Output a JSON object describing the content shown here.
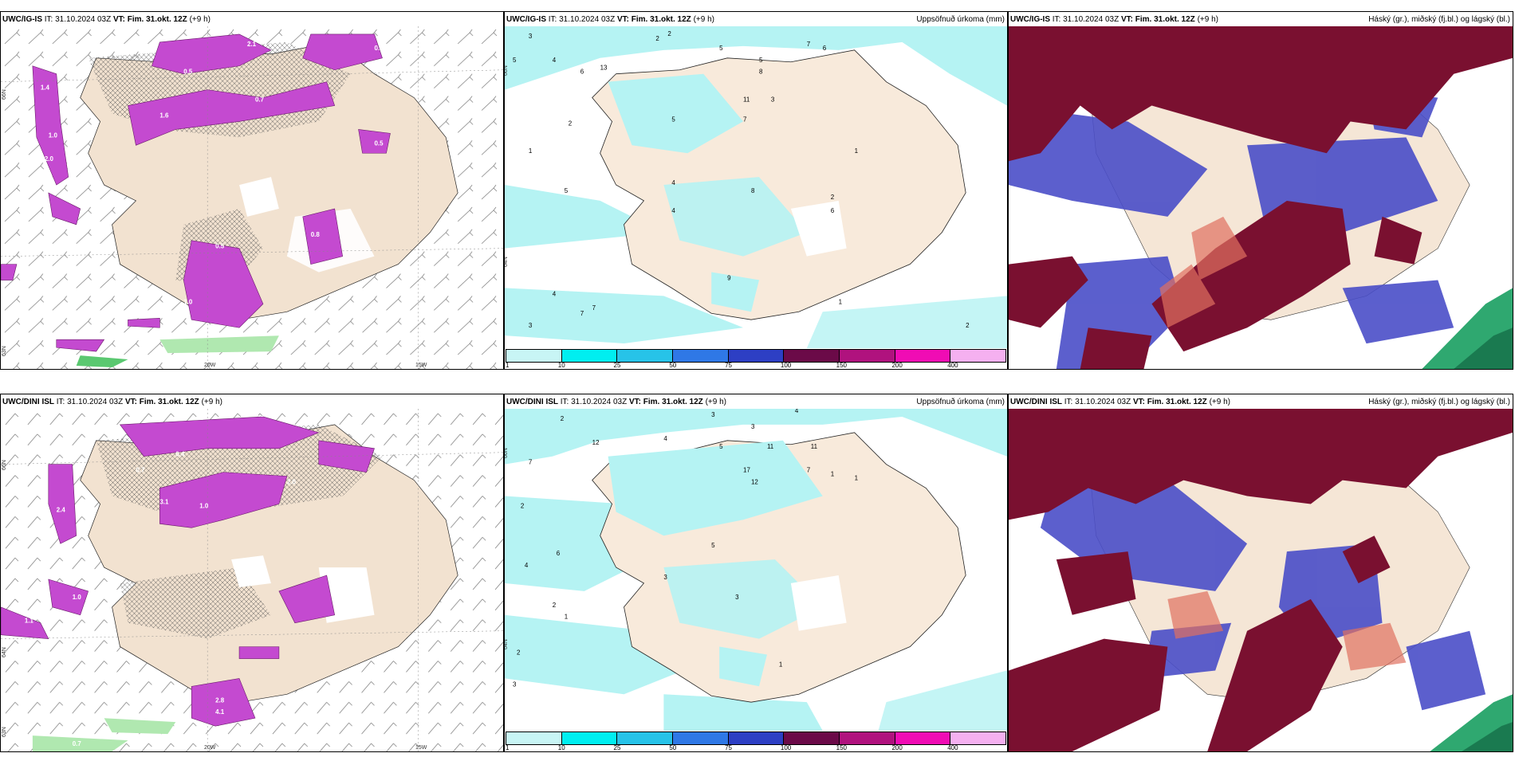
{
  "panels": {
    "tl": {
      "model": "UWC/IG-IS",
      "it_label": "IT:",
      "it": "31.10.2024 03Z",
      "vt_label": "VT: Fim. 31.okt. 12Z",
      "lead": "(+9 h)",
      "right": ""
    },
    "tm": {
      "model": "UWC/IG-IS",
      "it_label": "IT:",
      "it": "31.10.2024 03Z",
      "vt_label": "VT: Fim. 31.okt. 12Z",
      "lead": "(+9 h)",
      "right": "Uppsöfnuð úrkoma (mm)"
    },
    "tr": {
      "model": "UWC/IG-IS",
      "it_label": "IT:",
      "it": "31.10.2024 03Z",
      "vt_label": "VT: Fim. 31.okt. 12Z",
      "lead": "(+9 h)",
      "right": "Háský (gr.), miðský (fj.bl.) og lágský (bl.)"
    },
    "bl": {
      "model": "UWC/DINI ISL",
      "it_label": "IT:",
      "it": "31.10.2024 03Z",
      "vt_label": "VT: Fim. 31.okt. 12Z",
      "lead": "(+9 h)",
      "right": ""
    },
    "bm": {
      "model": "UWC/DINI ISL",
      "it_label": "IT:",
      "it": "31.10.2024 03Z",
      "vt_label": "VT: Fim. 31.okt. 12Z",
      "lead": "(+9 h)",
      "right": "Uppsöfnuð úrkoma (mm)"
    },
    "br": {
      "model": "UWC/DINI ISL",
      "it_label": "IT:",
      "it": "31.10.2024 03Z",
      "vt_label": "VT: Fim. 31.okt. 12Z",
      "lead": "(+9 h)",
      "right": "Háský (gr.), miðský (fj.bl.) og lágský (bl.)"
    }
  },
  "axis_labels": {
    "lat66": "66N",
    "lat64": "64N",
    "lat63": "63N",
    "lon20": "20W",
    "lon15": "15W"
  },
  "colorbar": {
    "labels": [
      "1",
      "10",
      "25",
      "50",
      "75",
      "100",
      "150",
      "200",
      "400"
    ],
    "colors": [
      "#c8f5f5",
      "#00eef0",
      "#27c3e8",
      "#2f78e6",
      "#2d3fc4",
      "#6b0a48",
      "#b0127e",
      "#f00cb4",
      "#f5b0f0"
    ]
  },
  "colors": {
    "land": "#f5e6d6",
    "sea": "#ffffff",
    "precip": "#b5f3f3",
    "high_cloud": "#7a1030",
    "mid_cloud": "#4a4ec8",
    "low_cloud": "#2fb5c8",
    "snow": "#d04ad8"
  },
  "precip_values_top": [
    "3",
    "2",
    "2",
    "5",
    "7",
    "6",
    "5",
    "5",
    "4",
    "6",
    "8",
    "13",
    "3",
    "5",
    "4",
    "1",
    "1",
    "5",
    "8",
    "11",
    "4",
    "4",
    "7",
    "2",
    "6",
    "9",
    "3",
    "2",
    "1",
    "2",
    "7",
    "7"
  ],
  "precip_values_bottom": [
    "2",
    "3",
    "4",
    "3",
    "7",
    "4",
    "12",
    "5",
    "11",
    "11",
    "17",
    "12",
    "1",
    "7",
    "2",
    "4",
    "5",
    "6",
    "3",
    "3",
    "1",
    "2",
    "1",
    "1",
    "2",
    "3"
  ],
  "snow_values_top": [
    "2.1",
    "1.4",
    "0.5",
    "1.0",
    "2.0",
    "1.6",
    "0.7",
    "0.5",
    "0.8",
    "0.5",
    "1.0",
    "0.3"
  ],
  "snow_values_bottom": [
    "0.3",
    "0.4",
    "2.4",
    "1.0",
    "0.7",
    "2.0",
    "3.1",
    "2.8",
    "4.1",
    "1.0",
    "1.1",
    "0.7"
  ]
}
